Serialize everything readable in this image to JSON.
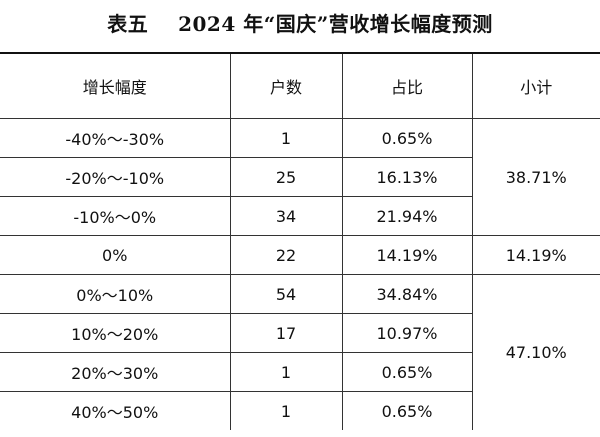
{
  "title": "表五    2024 年“国庆”营收增长幅度预测",
  "headers": [
    "增长幅度",
    "户数",
    "占比",
    "小计"
  ],
  "rows": [
    {
      "range": "-40%～-30%",
      "count": "1",
      "share": "0.65%"
    },
    {
      "range": "-20%～-10%",
      "count": "25",
      "share": "16.13%"
    },
    {
      "range": "-10%～0%",
      "count": "34",
      "share": "21.94%"
    },
    {
      "range": "0%",
      "count": "22",
      "share": "14.19%"
    },
    {
      "range": "0%～10%",
      "count": "54",
      "share": "34.84%"
    },
    {
      "range": "10%～20%",
      "count": "17",
      "share": "10.97%"
    },
    {
      "range": "20%～30%",
      "count": "1",
      "share": "0.65%"
    },
    {
      "range": "40%～50%",
      "count": "1",
      "share": "0.65%"
    }
  ],
  "subtotals": [
    "38.71%",
    "14.19%",
    "47.10%"
  ]
}
